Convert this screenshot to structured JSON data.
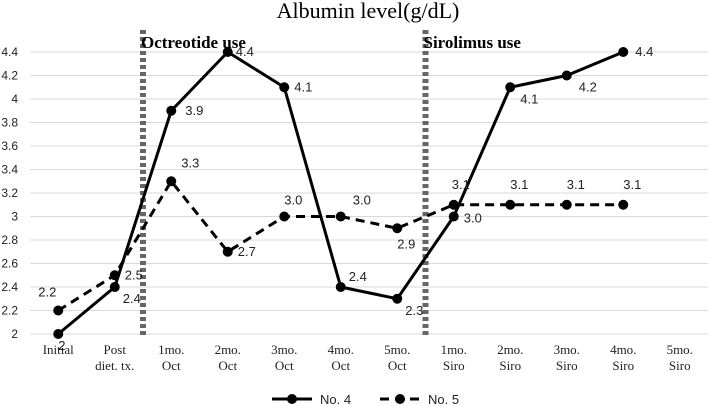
{
  "chart_data": {
    "type": "line",
    "title": "Albumin level(g/dL)",
    "xlabel": "",
    "ylabel": "",
    "ylim": [
      2,
      4.4
    ],
    "ytick_step": 0.2,
    "yticks": [
      "2",
      "2.2",
      "2.4",
      "2.6",
      "2.8",
      "3",
      "3.2",
      "3.4",
      "3.6",
      "3.8",
      "4",
      "4.2",
      "4.4"
    ],
    "grid": true,
    "legend_position": "bottom",
    "categories": [
      [
        "Initial"
      ],
      [
        "Post",
        "diet. tx."
      ],
      [
        "1mo.",
        "Oct"
      ],
      [
        "2mo.",
        "Oct"
      ],
      [
        "3mo.",
        "Oct"
      ],
      [
        "4mo.",
        "Oct"
      ],
      [
        "5mo.",
        "Oct"
      ],
      [
        "1mo.",
        "Siro"
      ],
      [
        "2mo.",
        "Siro"
      ],
      [
        "3mo.",
        "Siro"
      ],
      [
        "4mo.",
        "Siro"
      ],
      [
        "5mo.",
        "Siro"
      ]
    ],
    "series": [
      {
        "name": "No. 4",
        "style": "solid",
        "color": "#000000",
        "values": [
          2,
          2.4,
          3.9,
          4.4,
          4.1,
          2.4,
          2.3,
          3.0,
          4.1,
          4.2,
          4.4,
          null
        ],
        "labels": [
          "2",
          "2.4",
          "3.9",
          "4.4",
          "4.1",
          "2.4",
          "2.3",
          "3.0",
          "4.1",
          "4.2",
          "4.4",
          null
        ]
      },
      {
        "name": "No. 5",
        "style": "dashed",
        "color": "#000000",
        "values": [
          2.2,
          2.5,
          3.3,
          2.7,
          3.0,
          3.0,
          2.9,
          3.1,
          3.1,
          3.1,
          3.1,
          null
        ],
        "labels": [
          "2.2",
          "2.5",
          "3.3",
          "2.7",
          "3.0",
          "3.0",
          "2.9",
          "3.1",
          "3.1",
          "3.1",
          "3.1",
          null
        ]
      }
    ],
    "annotations": [
      {
        "text": "Octreotide use",
        "line_after_category": 1
      },
      {
        "text": "Sirolimus use",
        "line_after_category": 6
      }
    ]
  }
}
